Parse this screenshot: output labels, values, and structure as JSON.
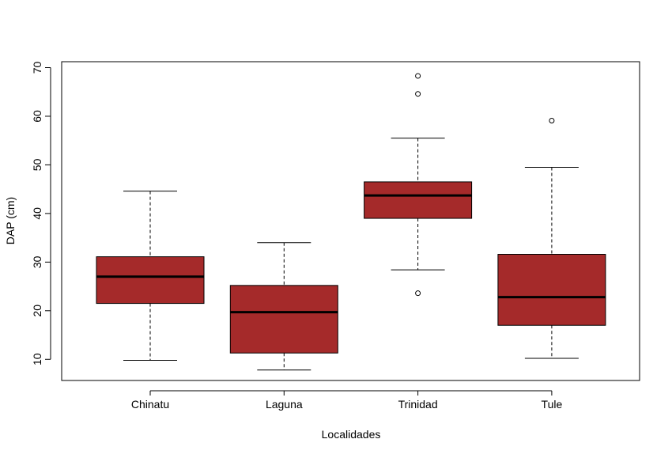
{
  "chart_data": {
    "type": "boxplot",
    "xlabel": "Localidades",
    "ylabel": "DAP (cm)",
    "ylim": [
      5,
      71
    ],
    "yticks": [
      10,
      20,
      30,
      40,
      50,
      60,
      70
    ],
    "box_fill": "#A52A2A",
    "categories": [
      "Chinatu",
      "Laguna",
      "Trinidad",
      "Tule"
    ],
    "boxes": [
      {
        "name": "Chinatu",
        "whisker_low": 9.8,
        "q1": 21.5,
        "median": 27.0,
        "q3": 31.1,
        "whisker_high": 44.6,
        "outliers": []
      },
      {
        "name": "Laguna",
        "whisker_low": 7.8,
        "q1": 11.3,
        "median": 19.7,
        "q3": 25.2,
        "whisker_high": 34.0,
        "outliers": []
      },
      {
        "name": "Trinidad",
        "whisker_low": 28.4,
        "q1": 39.0,
        "median": 43.7,
        "q3": 46.5,
        "whisker_high": 55.5,
        "outliers": [
          68.3,
          64.6,
          23.6
        ]
      },
      {
        "name": "Tule",
        "whisker_low": 10.2,
        "q1": 17.0,
        "median": 22.8,
        "q3": 31.6,
        "whisker_high": 49.5,
        "outliers": [
          59.1
        ]
      }
    ]
  }
}
